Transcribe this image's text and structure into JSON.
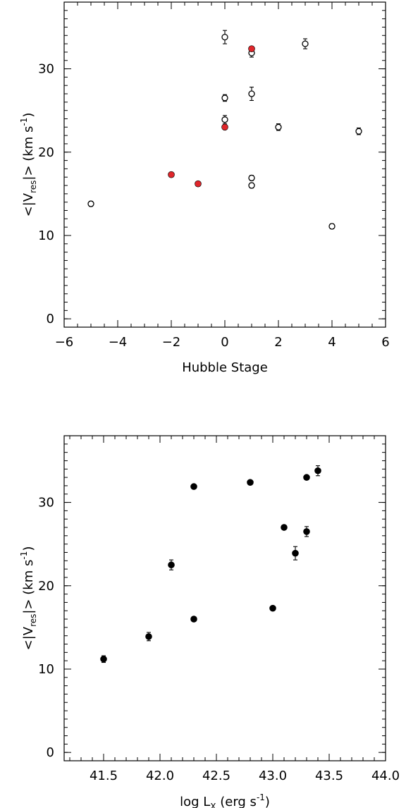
{
  "chart_data": [
    {
      "type": "scatter",
      "title": "",
      "xlabel": "Hubble Stage",
      "ylabel_parts": {
        "open": "<|V",
        "sub": "res",
        "close": "|> (km s",
        "sup": "-1",
        "end": ")"
      },
      "xlim": [
        -6,
        6
      ],
      "ylim": [
        -1,
        38
      ],
      "x_ticks": [
        -6,
        -4,
        -2,
        0,
        2,
        4,
        6
      ],
      "x_tick_labels": [
        "−6",
        "−4",
        "−2",
        "0",
        "2",
        "4",
        "6"
      ],
      "x_minor_step": 0.5,
      "y_ticks": [
        0,
        10,
        20,
        30
      ],
      "y_tick_labels": [
        "0",
        "10",
        "20",
        "30"
      ],
      "y_minor_step": 1,
      "grid": false,
      "series": [
        {
          "marker": "open-circle",
          "color": "#000000",
          "points": [
            {
              "x": -5,
              "y": 13.8,
              "err": 0.3
            },
            {
              "x": 0,
              "y": 33.8,
              "err": 0.8
            },
            {
              "x": 0,
              "y": 26.5,
              "err": 0.4
            },
            {
              "x": 0,
              "y": 23.9,
              "err": 0.5
            },
            {
              "x": 1,
              "y": 31.9,
              "err": 0.5
            },
            {
              "x": 1,
              "y": 27.0,
              "err": 0.8
            },
            {
              "x": 1,
              "y": 16.9,
              "err": 0.3
            },
            {
              "x": 1,
              "y": 16.0,
              "err": 0.3
            },
            {
              "x": 2,
              "y": 23.0,
              "err": 0.4
            },
            {
              "x": 3,
              "y": 33.0,
              "err": 0.6
            },
            {
              "x": 4,
              "y": 11.1,
              "err": 0.3
            },
            {
              "x": 5,
              "y": 22.5,
              "err": 0.4
            }
          ]
        },
        {
          "marker": "filled-circle",
          "color": "#e0262b",
          "points": [
            {
              "x": -2,
              "y": 17.3,
              "err": 0
            },
            {
              "x": -1,
              "y": 16.2,
              "err": 0
            },
            {
              "x": 0,
              "y": 23.0,
              "err": 0
            },
            {
              "x": 1,
              "y": 32.4,
              "err": 0
            }
          ]
        }
      ]
    },
    {
      "type": "scatter",
      "title": "",
      "xlabel_parts": {
        "main": "log L",
        "sub": "X",
        "mid": " (erg s",
        "sup": "-1",
        "end": ")"
      },
      "ylabel_parts": {
        "open": "<|V",
        "sub": "res",
        "close": "|> (km s",
        "sup": "-1",
        "end": ")"
      },
      "xlim": [
        41.15,
        44.0
      ],
      "ylim": [
        -1,
        38
      ],
      "x_ticks": [
        41.5,
        42.0,
        42.5,
        43.0,
        43.5,
        44.0
      ],
      "x_tick_labels": [
        "41.5",
        "42.0",
        "42.5",
        "43.0",
        "43.5",
        "44.0"
      ],
      "x_minor_step": 0.1,
      "y_ticks": [
        0,
        10,
        20,
        30
      ],
      "y_tick_labels": [
        "0",
        "10",
        "20",
        "30"
      ],
      "y_minor_step": 1,
      "grid": false,
      "series": [
        {
          "marker": "filled-circle",
          "color": "#000000",
          "points": [
            {
              "x": 41.5,
              "y": 11.2,
              "err": 0.4
            },
            {
              "x": 41.9,
              "y": 13.9,
              "err": 0.5
            },
            {
              "x": 42.1,
              "y": 22.5,
              "err": 0.6
            },
            {
              "x": 42.3,
              "y": 31.9,
              "err": 0.0
            },
            {
              "x": 42.3,
              "y": 16.0,
              "err": 0.0
            },
            {
              "x": 42.8,
              "y": 32.4,
              "err": 0.0
            },
            {
              "x": 43.0,
              "y": 17.3,
              "err": 0.0
            },
            {
              "x": 43.1,
              "y": 27.0,
              "err": 0.0
            },
            {
              "x": 43.2,
              "y": 23.9,
              "err": 0.8
            },
            {
              "x": 43.3,
              "y": 33.0,
              "err": 0.0
            },
            {
              "x": 43.3,
              "y": 26.5,
              "err": 0.6
            },
            {
              "x": 43.4,
              "y": 33.8,
              "err": 0.6
            }
          ]
        }
      ]
    }
  ]
}
